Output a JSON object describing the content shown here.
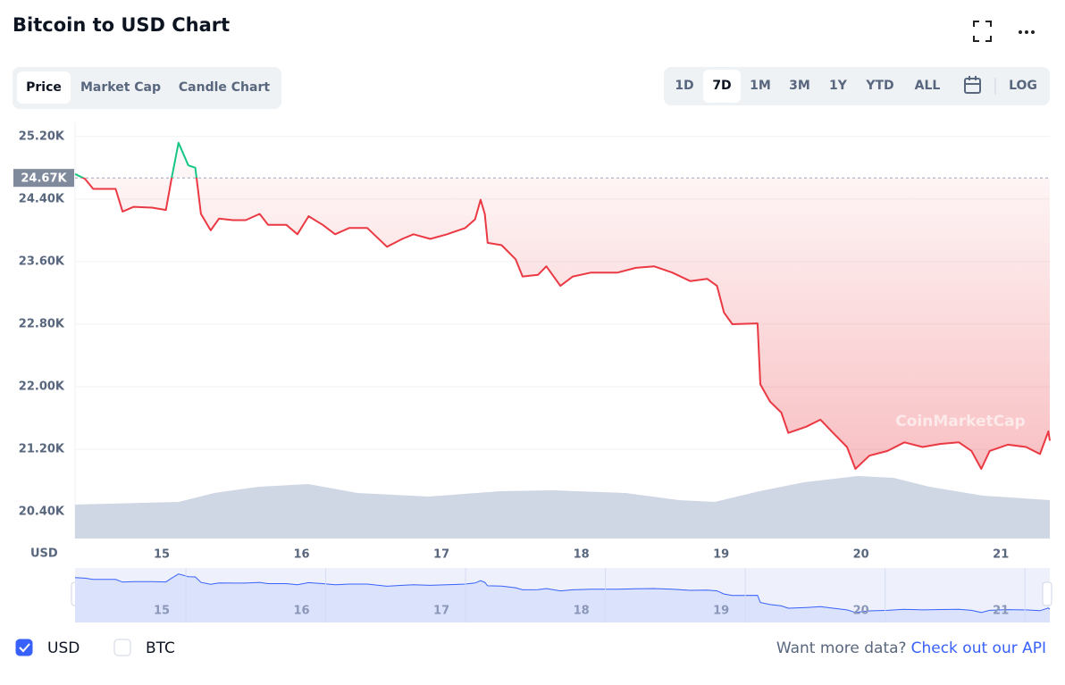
{
  "header": {
    "title": "Bitcoin to USD Chart"
  },
  "tabs": [
    "Price",
    "Market Cap",
    "Candle Chart"
  ],
  "active_tab": 0,
  "ranges": [
    "1D",
    "7D",
    "1M",
    "3M",
    "1Y",
    "YTD",
    "ALL"
  ],
  "active_range": 1,
  "log_label": "LOG",
  "chart_data": {
    "type": "line",
    "x": [
      14.38,
      14.45,
      14.51,
      14.67,
      14.72,
      14.8,
      14.93,
      15.03,
      15.07,
      15.12,
      15.19,
      15.24,
      15.28,
      15.35,
      15.41,
      15.51,
      15.6,
      15.7,
      15.76,
      15.89,
      15.97,
      16.05,
      16.15,
      16.24,
      16.34,
      16.47,
      16.61,
      16.72,
      16.8,
      16.92,
      17.04,
      17.17,
      17.24,
      17.28,
      17.31,
      17.33,
      17.43,
      17.53,
      17.58,
      17.69,
      17.75,
      17.85,
      17.94,
      18.07,
      18.26,
      18.39,
      18.52,
      18.65,
      18.78,
      18.9,
      18.97,
      19.02,
      19.08,
      19.26,
      19.28,
      19.35,
      19.43,
      19.48,
      19.61,
      19.71,
      19.8,
      19.9,
      19.96,
      20.06,
      20.19,
      20.31,
      20.44,
      20.57,
      20.7,
      20.79,
      20.86,
      20.92,
      21.05,
      21.18,
      21.28,
      21.34,
      21.35
    ],
    "values": [
      24720,
      24660,
      24530,
      24530,
      24240,
      24300,
      24290,
      24260,
      24660,
      25120,
      24830,
      24800,
      24210,
      24000,
      24150,
      24130,
      24130,
      24210,
      24070,
      24070,
      23950,
      24180,
      24070,
      23950,
      24030,
      24030,
      23790,
      23890,
      23950,
      23890,
      23950,
      24030,
      24140,
      24390,
      24210,
      23840,
      23810,
      23630,
      23410,
      23430,
      23540,
      23290,
      23410,
      23460,
      23460,
      23520,
      23540,
      23460,
      23350,
      23380,
      23290,
      22950,
      22800,
      22810,
      22030,
      21810,
      21670,
      21410,
      21490,
      21580,
      21410,
      21230,
      20950,
      21120,
      21180,
      21290,
      21230,
      21270,
      21290,
      21180,
      20950,
      21180,
      21260,
      21230,
      21140,
      21430,
      21310
    ],
    "color_up": "#16c784",
    "color_down": "#ea3943",
    "y_axis_label": "USD",
    "xlim": [
      14.38,
      21.35
    ],
    "xticks": [
      15,
      16,
      17,
      18,
      19,
      20,
      21
    ],
    "ylim": [
      20060,
      25380
    ],
    "yticks": [
      {
        "value": 20400,
        "label": "20.40K"
      },
      {
        "value": 21200,
        "label": "21.20K"
      },
      {
        "value": 22000,
        "label": "22.00K"
      },
      {
        "value": 22800,
        "label": "22.80K"
      },
      {
        "value": 23600,
        "label": "23.60K"
      },
      {
        "value": 24400,
        "label": "24.40K"
      },
      {
        "value": 25200,
        "label": "25.20K"
      }
    ],
    "grid": true,
    "reference": {
      "value": 24670,
      "label": "24.67K"
    },
    "watermark": "CoinMarketCap"
  },
  "legend": [
    {
      "label": "USD",
      "checked": true
    },
    {
      "label": "BTC",
      "checked": false
    }
  ],
  "footer": {
    "text": "Want more data?",
    "link": "Check out our API"
  }
}
